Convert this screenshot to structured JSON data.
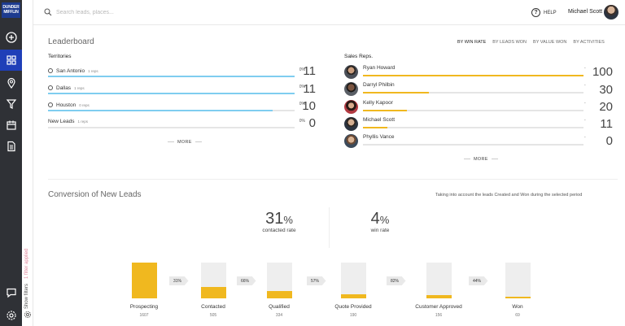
{
  "brand": {
    "logo_text": "DUNDER MIFFLIN"
  },
  "search": {
    "placeholder": "Search leads, places..."
  },
  "header": {
    "help_label": "HELP",
    "user_name": "Michael Scott"
  },
  "filters": {
    "applied_label": "1 filter applied",
    "show_label": "Show filters"
  },
  "leaderboard": {
    "title": "Leaderboard",
    "sort_tabs": [
      "BY WIN RATE",
      "BY LEADS WON",
      "BY VALUE WON",
      "BY ACTIVITIES"
    ],
    "territories_heading": "Territories",
    "territories": [
      {
        "name": "San Antonio",
        "reps": "1 reps",
        "pct": "0%",
        "count": "11",
        "bar_fraction": 1.0
      },
      {
        "name": "Dallas",
        "reps": "1 reps",
        "pct": "0%",
        "count": "11",
        "bar_fraction": 1.0
      },
      {
        "name": "Houston",
        "reps": "0 reps",
        "pct": "0%",
        "count": "10",
        "bar_fraction": 0.91
      },
      {
        "name": "New Leads",
        "reps": "1 reps",
        "pct": "0%",
        "count": "0",
        "bar_fraction": 0
      }
    ],
    "reps_heading": "Sales Reps.",
    "reps": [
      {
        "name": "Ryan Howard",
        "pct": "-",
        "count": "100",
        "bar_fraction": 1.0
      },
      {
        "name": "Darryl Philbin",
        "pct": "-",
        "count": "30",
        "bar_fraction": 0.3
      },
      {
        "name": "Kelly Kapoor",
        "pct": "-",
        "count": "20",
        "bar_fraction": 0.2
      },
      {
        "name": "Michael Scott",
        "pct": "-",
        "count": "11",
        "bar_fraction": 0.11
      },
      {
        "name": "Phyllis Vance",
        "pct": "-",
        "count": "0",
        "bar_fraction": 0
      }
    ],
    "more_label": "MORE"
  },
  "conversion": {
    "title": "Conversion of New Leads",
    "note": "Taking into account the leads Created and Won during the selected period",
    "contacted_rate_value": "31",
    "contacted_rate_label": "contacted rate",
    "win_rate_value": "4",
    "win_rate_label": "win rate",
    "percent_sign": "%",
    "stages": [
      {
        "label": "Prospecting",
        "count": "1607",
        "fill_fraction": 1.0
      },
      {
        "label": "Contacted",
        "count": "505",
        "fill_fraction": 0.31
      },
      {
        "label": "Qualified",
        "count": "334",
        "fill_fraction": 0.21
      },
      {
        "label": "Quote Provided",
        "count": "190",
        "fill_fraction": 0.12
      },
      {
        "label": "Customer Approved",
        "count": "156",
        "fill_fraction": 0.1
      },
      {
        "label": "Won",
        "count": "69",
        "fill_fraction": 0.04
      }
    ],
    "step_rates": [
      "31%",
      "66%",
      "57%",
      "82%",
      "44%"
    ]
  },
  "colors": {
    "territory_bar": "#7fcdf0",
    "rep_bar": "#f0b81f",
    "nav_bg": "#2f3136",
    "nav_active": "#1f3fb8"
  }
}
